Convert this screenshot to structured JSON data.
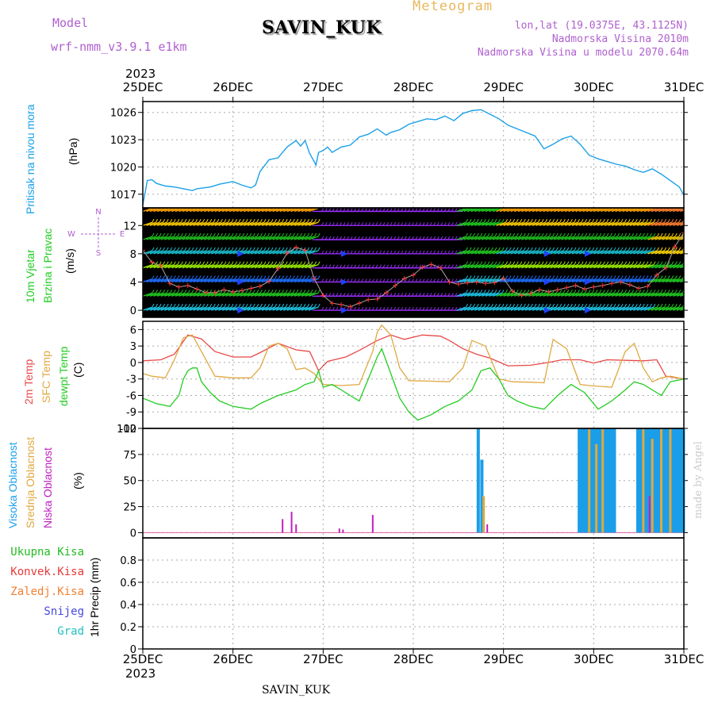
{
  "header": {
    "model_label": "Model",
    "model_name": "wrf-nmm_v3.9.1 e1km",
    "station": "SAVIN_KUK",
    "title": "Meteogram",
    "lonlat": "lon,lat (19.0375E, 43.1125N)",
    "altitude": "Nadmorska Visina 2010m",
    "model_altitude": "Nadmorska Visina u modelu 2070.64m",
    "year_top": "2023",
    "year_bottom": "2023",
    "footer_station": "SAVIN_KUK",
    "made_by": "made by Angel"
  },
  "x_axis": {
    "ticks": [
      "25DEC",
      "26DEC",
      "27DEC",
      "28DEC",
      "29DEC",
      "30DEC",
      "31DEC"
    ]
  },
  "panel_labels": {
    "pressure": [
      "Pritisak na nivou mora",
      "(hPa)"
    ],
    "wind": [
      "10m Vjetar",
      "Brzina i Pravac",
      "(m/s)"
    ],
    "wind_compass": {
      "n": "N",
      "s": "S",
      "e": "E",
      "w": "W"
    },
    "temp": [
      "2m Temp",
      "SFC Temp",
      "dewpt Temp",
      "(C)"
    ],
    "cloud": [
      "Visoka Oblacnost",
      "Srednja Oblacnost",
      "Niska Oblacnost",
      "(%)"
    ],
    "precip_left": [
      "Ukupna Kisa",
      "Konvek.Kisa",
      "Zaledj.Kisa",
      "Snijeg",
      "Grad"
    ],
    "precip_unit": "1hr Precip (mm)"
  },
  "colors": {
    "pressure": "#1aa0e8",
    "temp2m": "#e84848",
    "sfc": "#e0a840",
    "dewpt": "#22cc22",
    "cloud_high": "#1a9ee8",
    "cloud_mid": "#e0a840",
    "cloud_low": "#c020c0",
    "ukupna": "#22bb22",
    "konvek": "#e83838",
    "zaledj": "#f08030",
    "snijeg": "#4848e0",
    "grad": "#20c0c0"
  },
  "chart_data": [
    {
      "type": "line",
      "title": "Pritisak na nivou mora",
      "ylabel": "(hPa)",
      "x_unit": "days since 25DEC 00Z",
      "ylim": [
        1015.5,
        1027.2
      ],
      "yticks": [
        1017,
        1020,
        1023,
        1026
      ],
      "series": [
        {
          "name": "Pritisak",
          "x": [
            0,
            0.05,
            0.1,
            0.15,
            0.25,
            0.35,
            0.45,
            0.55,
            0.6,
            0.75,
            0.85,
            1.0,
            1.1,
            1.2,
            1.25,
            1.3,
            1.4,
            1.5,
            1.55,
            1.6,
            1.7,
            1.75,
            1.8,
            1.85,
            1.9,
            1.92,
            1.95,
            2.0,
            2.05,
            2.1,
            2.2,
            2.3,
            2.4,
            2.5,
            2.6,
            2.7,
            2.75,
            2.85,
            2.95,
            3.05,
            3.15,
            3.25,
            3.35,
            3.45,
            3.55,
            3.65,
            3.75,
            3.85,
            3.95,
            4.05,
            4.15,
            4.25,
            4.35,
            4.45,
            4.55,
            4.65,
            4.75,
            4.85,
            4.95,
            5.05,
            5.15,
            5.25,
            5.35,
            5.45,
            5.55,
            5.65,
            5.75,
            5.85,
            5.95,
            6.0
          ],
          "values": [
            1015.8,
            1018.5,
            1018.6,
            1018.2,
            1017.9,
            1017.8,
            1017.6,
            1017.4,
            1017.6,
            1017.8,
            1018.1,
            1018.4,
            1018.0,
            1017.7,
            1018.0,
            1019.5,
            1020.8,
            1021.0,
            1021.6,
            1022.2,
            1022.9,
            1022.3,
            1022.9,
            1021.5,
            1020.6,
            1020.2,
            1021.6,
            1021.8,
            1022.2,
            1021.6,
            1022.2,
            1022.4,
            1023.3,
            1023.6,
            1024.2,
            1023.5,
            1023.8,
            1024.1,
            1024.7,
            1025.0,
            1025.3,
            1025.2,
            1025.6,
            1025.1,
            1025.9,
            1026.2,
            1026.3,
            1025.8,
            1025.3,
            1024.6,
            1024.2,
            1023.8,
            1023.4,
            1022.0,
            1022.5,
            1023.1,
            1023.4,
            1022.5,
            1021.3,
            1020.9,
            1020.6,
            1020.3,
            1020.1,
            1019.7,
            1019.4,
            1019.8,
            1019.2,
            1018.5,
            1017.8,
            1016.9
          ]
        }
      ]
    },
    {
      "type": "line",
      "title": "10m Vjetar Brzina i Pravac",
      "ylabel": "(m/s)",
      "x_unit": "days since 25DEC 00Z",
      "ylim": [
        -1,
        14.5
      ],
      "yticks": [
        0,
        4,
        8,
        12
      ],
      "series": [
        {
          "name": "Brzina",
          "x": [
            0,
            0.1,
            0.2,
            0.3,
            0.4,
            0.5,
            0.6,
            0.7,
            0.8,
            0.9,
            1.0,
            1.1,
            1.2,
            1.3,
            1.4,
            1.5,
            1.6,
            1.7,
            1.8,
            1.9,
            2.0,
            2.1,
            2.2,
            2.3,
            2.4,
            2.5,
            2.6,
            2.7,
            2.8,
            2.9,
            3.0,
            3.1,
            3.2,
            3.3,
            3.4,
            3.5,
            3.6,
            3.7,
            3.8,
            3.9,
            4.0,
            4.1,
            4.2,
            4.3,
            4.4,
            4.5,
            4.6,
            4.7,
            4.8,
            4.9,
            5.0,
            5.1,
            5.2,
            5.3,
            5.4,
            5.5,
            5.6,
            5.7,
            5.8,
            5.9,
            6.0
          ],
          "values": [
            8.5,
            6.8,
            6.3,
            3.8,
            3.3,
            3.5,
            3.0,
            2.5,
            2.5,
            2.9,
            2.6,
            2.8,
            3.1,
            3.4,
            4.1,
            5.9,
            8.1,
            8.9,
            8.5,
            4.5,
            2.1,
            1.0,
            0.8,
            0.5,
            1.0,
            1.5,
            1.6,
            2.5,
            3.5,
            4.5,
            5.0,
            6.1,
            6.5,
            6.0,
            4.0,
            3.7,
            3.9,
            4.0,
            3.8,
            3.9,
            4.5,
            2.7,
            2.1,
            2.4,
            2.9,
            2.6,
            2.9,
            3.2,
            3.5,
            3.0,
            3.3,
            3.5,
            3.8,
            4.0,
            3.6,
            3.1,
            3.4,
            5.0,
            6.0,
            9.0,
            11.0
          ]
        }
      ]
    },
    {
      "type": "line",
      "title": "2m Temp / SFC Temp / dewpt Temp",
      "ylabel": "(C)",
      "x_unit": "days since 25DEC 00Z",
      "ylim": [
        -12,
        7.5
      ],
      "yticks": [
        -12,
        -9,
        -6,
        -3,
        0,
        3,
        6
      ],
      "series": [
        {
          "name": "2m Temp",
          "x": [
            0,
            0.2,
            0.35,
            0.5,
            0.65,
            0.8,
            1.0,
            1.2,
            1.3,
            1.5,
            1.7,
            1.85,
            1.95,
            2.05,
            2.25,
            2.4,
            2.6,
            2.75,
            2.9,
            3.1,
            3.3,
            3.4,
            3.55,
            3.7,
            3.85,
            4.05,
            4.3,
            4.5,
            4.65,
            4.85,
            5.0,
            5.15,
            5.35,
            5.55,
            5.7,
            5.8,
            6.0
          ],
          "values": [
            0.3,
            0.5,
            1.5,
            5.0,
            4.3,
            2.0,
            1.0,
            1.0,
            1.8,
            3.5,
            2.3,
            2.0,
            -1.5,
            0.2,
            1.0,
            2.2,
            4.0,
            5.0,
            4.2,
            5.0,
            4.8,
            4.0,
            2.5,
            1.5,
            0.8,
            -0.6,
            -0.5,
            0.0,
            0.5,
            0.5,
            -0.1,
            0.5,
            0.4,
            0.3,
            0.5,
            -2.5,
            -3.0
          ]
        },
        {
          "name": "SFC Temp",
          "x": [
            0,
            0.1,
            0.25,
            0.35,
            0.45,
            0.55,
            0.65,
            0.8,
            1.0,
            1.2,
            1.3,
            1.4,
            1.5,
            1.6,
            1.7,
            1.8,
            1.9,
            2.0,
            2.2,
            2.4,
            2.55,
            2.6,
            2.65,
            2.75,
            2.85,
            2.95,
            3.2,
            3.4,
            3.55,
            3.65,
            3.8,
            3.95,
            4.1,
            4.3,
            4.45,
            4.55,
            4.7,
            4.85,
            4.95,
            5.2,
            5.35,
            5.45,
            5.55,
            5.65,
            5.75,
            5.85,
            6.0
          ],
          "values": [
            -2.0,
            -2.5,
            -2.8,
            0.5,
            4.5,
            5.0,
            2.0,
            -2.5,
            -2.8,
            -2.8,
            -1.0,
            3.0,
            3.5,
            2.5,
            -1.3,
            -1.0,
            -2.0,
            -4.0,
            -4.2,
            -4.0,
            2.0,
            5.5,
            6.8,
            5.0,
            -1.0,
            -3.3,
            -3.4,
            -3.5,
            -1.0,
            4.0,
            3.0,
            -3.0,
            -3.5,
            -3.6,
            -3.7,
            4.2,
            2.5,
            -4.0,
            -4.2,
            -4.5,
            2.0,
            3.5,
            -1.0,
            -3.5,
            -2.8,
            -2.5,
            -3.0
          ]
        },
        {
          "name": "dewpt Temp",
          "x": [
            0,
            0.15,
            0.3,
            0.4,
            0.45,
            0.5,
            0.55,
            0.6,
            0.65,
            0.75,
            0.85,
            1.0,
            1.2,
            1.3,
            1.5,
            1.7,
            1.8,
            1.9,
            1.95,
            2.0,
            2.1,
            2.2,
            2.3,
            2.4,
            2.5,
            2.6,
            2.65,
            2.75,
            2.85,
            2.95,
            3.05,
            3.2,
            3.35,
            3.5,
            3.65,
            3.75,
            3.85,
            3.95,
            4.05,
            4.15,
            4.3,
            4.45,
            4.6,
            4.75,
            4.9,
            5.05,
            5.2,
            5.35,
            5.45,
            5.55,
            5.65,
            5.75,
            5.85,
            6.0
          ],
          "values": [
            -6.5,
            -7.5,
            -8.0,
            -6.0,
            -3.0,
            -1.5,
            -1.0,
            -1.0,
            -3.5,
            -5.5,
            -7.0,
            -8.0,
            -8.5,
            -7.5,
            -6.0,
            -5.0,
            -4.0,
            -3.5,
            -1.5,
            -4.5,
            -4.0,
            -5.0,
            -6.0,
            -7.0,
            -3.0,
            1.0,
            2.5,
            -2.0,
            -6.5,
            -9.0,
            -10.5,
            -9.5,
            -8.0,
            -7.0,
            -5.0,
            -1.5,
            -1.0,
            -3.0,
            -6.0,
            -7.0,
            -8.0,
            -8.5,
            -6.0,
            -4.0,
            -5.5,
            -8.5,
            -7.0,
            -5.0,
            -3.5,
            -4.0,
            -5.0,
            -6.0,
            -3.5,
            -3.0
          ]
        }
      ]
    },
    {
      "type": "bar",
      "title": "Visoka / Srednja / Niska Oblacnost",
      "ylabel": "(%)",
      "x_unit": "days since 25DEC 00Z",
      "ylim": [
        -5,
        100
      ],
      "yticks": [
        0,
        25,
        50,
        75,
        100
      ],
      "series": [
        {
          "name": "Visoka Oblacnost",
          "x": [
            3.72,
            3.76,
            4.84,
            4.87,
            4.9,
            4.93,
            4.96,
            4.99,
            5.02,
            5.05,
            5.08,
            5.11,
            5.14,
            5.17,
            5.2,
            5.23,
            5.49,
            5.52,
            5.55,
            5.58,
            5.61,
            5.64,
            5.67,
            5.7,
            5.73,
            5.76,
            5.79,
            5.82,
            5.85,
            5.88,
            5.91,
            5.94,
            5.97,
            5.995
          ],
          "values": [
            100,
            70,
            100,
            100,
            100,
            100,
            100,
            100,
            100,
            100,
            100,
            100,
            100,
            100,
            100,
            100,
            100,
            100,
            100,
            100,
            100,
            100,
            100,
            100,
            100,
            100,
            100,
            100,
            100,
            100,
            100,
            100,
            100,
            100
          ]
        },
        {
          "name": "Srednja Oblacnost",
          "x": [
            3.78,
            4.95,
            5.03,
            5.1,
            5.55,
            5.65,
            5.75,
            5.85
          ],
          "values": [
            35,
            100,
            85,
            100,
            100,
            90,
            100,
            100
          ]
        },
        {
          "name": "Niska Oblacnost",
          "x": [
            1.55,
            1.65,
            1.7,
            2.18,
            2.22,
            2.55,
            3.82,
            5.62
          ],
          "values": [
            13,
            20,
            8,
            4,
            3,
            17,
            8,
            35
          ]
        }
      ]
    },
    {
      "type": "bar",
      "title": "1hr Precip",
      "ylabel": "1hr Precip (mm)",
      "x_unit": "days since 25DEC 00Z",
      "ylim": [
        0,
        1.0
      ],
      "yticks": [
        0,
        0.2,
        0.4,
        0.6,
        0.8
      ],
      "series": [
        {
          "name": "Ukupna Kisa",
          "x": [],
          "values": []
        }
      ]
    }
  ]
}
